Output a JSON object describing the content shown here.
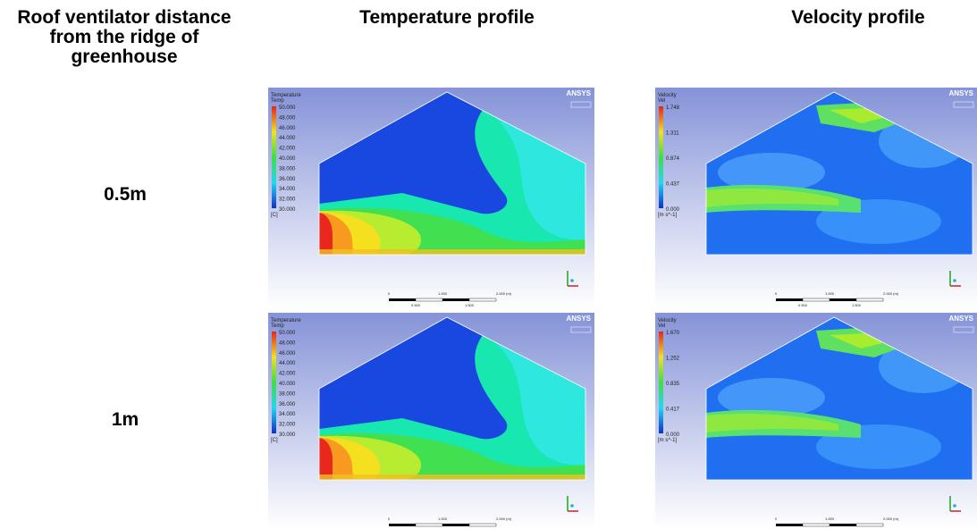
{
  "headers": [
    "Roof ventilator distance from the ridge of greenhouse",
    "Temperature profile",
    "Velocity profile"
  ],
  "rows": [
    {
      "label": "0.5m",
      "temperature": {
        "title": "Temperature",
        "variable": "Temp",
        "levels": [
          "50.000",
          "48.000",
          "46.000",
          "44.000",
          "42.000",
          "40.000",
          "38.000",
          "36.000",
          "34.000",
          "32.000",
          "30.000"
        ],
        "unit": "[C]",
        "brand": "ANSYS",
        "scale": [
          "0",
          "1.000",
          "2.000 (m)",
          "0.500",
          "1.500"
        ]
      },
      "velocity": {
        "title": "Velocity",
        "variable": "Vel",
        "levels": [
          "1.748",
          "1.311",
          "0.874",
          "0.437",
          "0.000"
        ],
        "unit": "[m s^-1]",
        "brand": "ANSYS",
        "scale": [
          "0",
          "1.000",
          "2.000 (m)",
          "0.500",
          "1.500"
        ]
      }
    },
    {
      "label": "1m",
      "temperature": {
        "title": "Temperature",
        "variable": "Temp",
        "levels": [
          "50.000",
          "48.000",
          "46.000",
          "44.000",
          "42.000",
          "40.000",
          "38.000",
          "36.000",
          "34.000",
          "32.000",
          "30.000"
        ],
        "unit": "[C]",
        "brand": "ANSYS",
        "scale": [
          "0",
          "1.000",
          "2.000 (m)"
        ]
      },
      "velocity": {
        "title": "Velocity",
        "variable": "Vel",
        "levels": [
          "1.670",
          "1.252",
          "0.835",
          "0.417",
          "0.000"
        ],
        "unit": "[m s^-1]",
        "brand": "ANSYS",
        "scale": [
          "0",
          "1.000",
          "2.000 (m)"
        ]
      }
    }
  ]
}
